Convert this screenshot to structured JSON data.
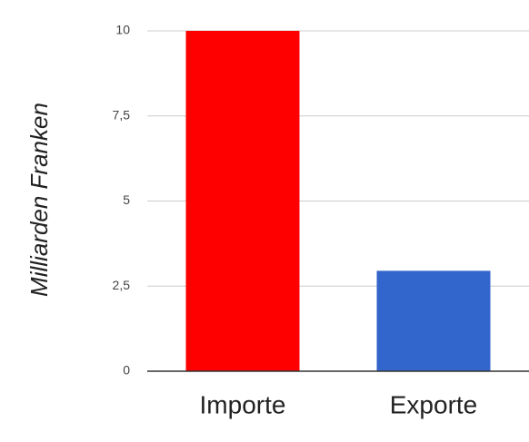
{
  "chart_data": {
    "type": "bar",
    "y_label": "Milliarden Franken",
    "categories": [
      "Importe",
      "Exporte"
    ],
    "values": [
      10,
      2.95
    ],
    "colors": [
      "#ff0000",
      "#3366cc"
    ],
    "ylim": [
      0,
      10
    ],
    "yticks": [
      0,
      {
        "value": 2.5,
        "label": "2,5"
      },
      5,
      {
        "value": 7.5,
        "label": "7,5"
      },
      10
    ],
    "grid": true
  }
}
